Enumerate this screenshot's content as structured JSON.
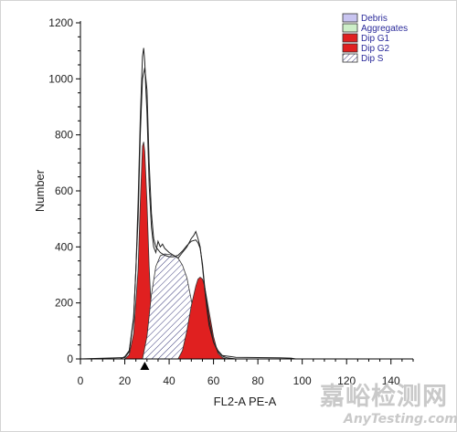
{
  "chart_data": {
    "type": "area",
    "xlabel": "FL2-A PE-A",
    "ylabel": "Number",
    "xlim": [
      0,
      150
    ],
    "ylim": [
      0,
      1200
    ],
    "x_ticks": [
      0,
      20,
      40,
      60,
      80,
      100,
      120,
      140
    ],
    "y_ticks": [
      0,
      200,
      400,
      600,
      800,
      1000,
      1200
    ],
    "legend_position": "top-right",
    "legend": [
      {
        "name": "Debris",
        "color": "#c8c4f0",
        "pattern": "solid"
      },
      {
        "name": "Aggregates",
        "color": "#cdeec8",
        "pattern": "solid"
      },
      {
        "name": "Dip G1",
        "color": "#e02020",
        "pattern": "solid"
      },
      {
        "name": "Dip G2",
        "color": "#e02020",
        "pattern": "solid"
      },
      {
        "name": "Dip S",
        "color": "#ffffff",
        "pattern": "hatched"
      }
    ],
    "marker_x": 29,
    "histogram": {
      "x": [
        0,
        18,
        20,
        22,
        24,
        25,
        26,
        27,
        28,
        28.5,
        29,
        29.5,
        30,
        31,
        32,
        33,
        34,
        35,
        36,
        37,
        38,
        40,
        42,
        44,
        46,
        48,
        50,
        51,
        52,
        53,
        54,
        55,
        56,
        57,
        58,
        60,
        62,
        64,
        66,
        68,
        70,
        80,
        90,
        95,
        97,
        150
      ],
      "y": [
        0,
        0,
        8,
        30,
        150,
        320,
        560,
        860,
        1080,
        1110,
        1060,
        960,
        880,
        620,
        470,
        400,
        380,
        420,
        400,
        410,
        395,
        380,
        370,
        360,
        380,
        400,
        430,
        440,
        455,
        430,
        400,
        330,
        250,
        180,
        120,
        60,
        30,
        12,
        10,
        8,
        6,
        5,
        4,
        3,
        0,
        0
      ]
    },
    "fit_envelope": {
      "x": [
        0,
        20,
        22,
        24,
        26,
        27,
        28,
        29,
        30,
        31,
        32,
        33,
        34,
        36,
        38,
        40,
        42,
        44,
        46,
        48,
        50,
        52,
        53,
        54,
        55,
        56,
        58,
        60,
        62,
        64,
        66,
        70,
        150
      ],
      "y": [
        0,
        5,
        25,
        140,
        500,
        800,
        1000,
        1040,
        960,
        700,
        520,
        430,
        400,
        380,
        370,
        365,
        365,
        370,
        385,
        405,
        420,
        425,
        415,
        395,
        340,
        260,
        140,
        60,
        25,
        10,
        4,
        0,
        0
      ]
    },
    "components": [
      {
        "name": "Dip G1",
        "x": [
          20,
          22,
          24,
          26,
          27,
          28,
          28.5,
          29,
          30,
          31,
          32,
          34,
          36
        ],
        "y": [
          0,
          15,
          90,
          320,
          560,
          760,
          775,
          740,
          560,
          330,
          160,
          30,
          0
        ]
      },
      {
        "name": "Dip S",
        "x": [
          28,
          30,
          32,
          34,
          36,
          38,
          40,
          42,
          44,
          46,
          48,
          50,
          52,
          54,
          58,
          62
        ],
        "y": [
          0,
          80,
          230,
          330,
          368,
          375,
          373,
          370,
          360,
          335,
          290,
          210,
          120,
          50,
          10,
          0
        ]
      },
      {
        "name": "Dip G2",
        "x": [
          44,
          46,
          48,
          50,
          52,
          53,
          54,
          55,
          56,
          58,
          60,
          62,
          64,
          66
        ],
        "y": [
          0,
          30,
          100,
          190,
          260,
          285,
          292,
          285,
          260,
          170,
          80,
          20,
          5,
          0
        ]
      }
    ]
  },
  "watermark": {
    "line1": "嘉峪检测网",
    "line2": "AnyTesting.com"
  },
  "colors": {
    "g1_fill": "#e02020",
    "g2_fill": "#e02020",
    "s_hatch": "#3a3a7a",
    "curve": "#222222"
  }
}
